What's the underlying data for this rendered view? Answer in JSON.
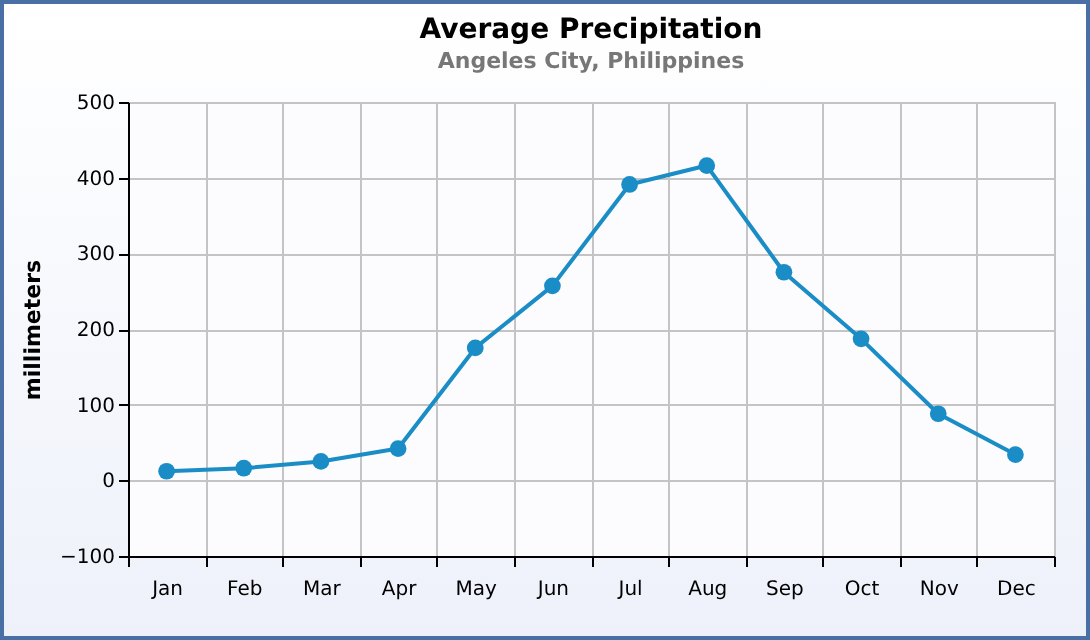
{
  "chart_data": {
    "type": "line",
    "title": "Average Precipitation",
    "subtitle": "Angeles City, Philippines",
    "ylabel": "millimeters",
    "categories": [
      "Jan",
      "Feb",
      "Mar",
      "Apr",
      "May",
      "Jun",
      "Jul",
      "Aug",
      "Sep",
      "Oct",
      "Nov",
      "Dec"
    ],
    "series": [
      {
        "color": "#1a8dc6",
        "values": [
          12,
          16,
          25,
          42,
          175,
          257,
          391,
          416,
          275,
          187,
          88,
          34
        ]
      }
    ],
    "ylim": [
      -100,
      500
    ],
    "yticks": [
      -100,
      0,
      100,
      200,
      300,
      400,
      500
    ],
    "grid": true,
    "marker": "circle",
    "line_style": "solid",
    "legend": false
  }
}
